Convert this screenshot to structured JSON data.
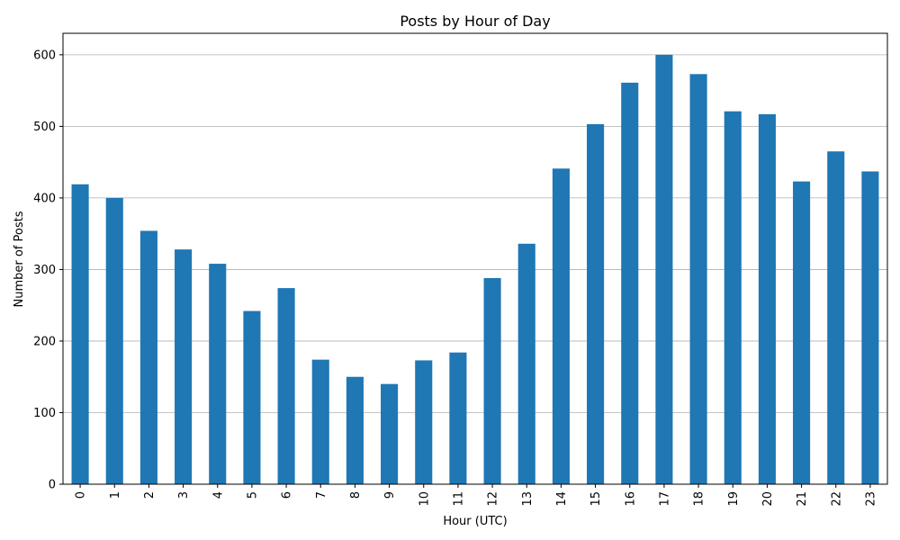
{
  "chart_data": {
    "type": "bar",
    "title": "Posts by Hour of Day",
    "xlabel": "Hour (UTC)",
    "ylabel": "Number of Posts",
    "categories": [
      "0",
      "1",
      "2",
      "3",
      "4",
      "5",
      "6",
      "7",
      "8",
      "9",
      "10",
      "11",
      "12",
      "13",
      "14",
      "15",
      "16",
      "17",
      "18",
      "19",
      "20",
      "21",
      "22",
      "23"
    ],
    "values": [
      419,
      400,
      354,
      328,
      308,
      242,
      274,
      174,
      150,
      140,
      173,
      184,
      288,
      336,
      441,
      503,
      561,
      600,
      573,
      521,
      517,
      423,
      465,
      437
    ],
    "ylim": [
      0,
      630
    ],
    "yticks": [
      0,
      100,
      200,
      300,
      400,
      500,
      600
    ],
    "grid": "y-axis",
    "legend": "none",
    "bar_color": "#1f77b4",
    "grid_color": "#b0b0b0"
  }
}
